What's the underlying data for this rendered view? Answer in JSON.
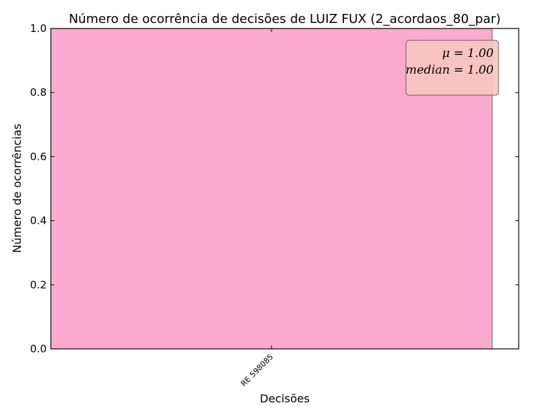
{
  "chart_data": {
    "type": "bar",
    "title": "Número de ocorrência de decisões de LUIZ FUX (2_acordaos_80_par)",
    "xlabel": "Decisões",
    "ylabel": "Número de ocorrências",
    "categories": [
      "RE 598085"
    ],
    "values": [
      1
    ],
    "ylim": [
      0,
      1.0
    ],
    "yticks": [
      "0.0",
      "0.2",
      "0.4",
      "0.6",
      "0.8",
      "1.0"
    ],
    "grid": false,
    "bar_color": "#fdaad0",
    "mean_line_color": "#cc2222",
    "stats": {
      "mean": "μ = 1.00",
      "median": "median = 1.00",
      "box_color": "#f8c6c0"
    }
  }
}
